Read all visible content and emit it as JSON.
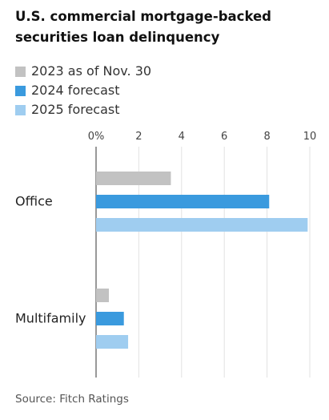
{
  "chart_data": {
    "type": "bar",
    "orientation": "horizontal",
    "title": "U.S. commercial mortgage-backed securities loan delinquency",
    "categories": [
      "Office",
      "Multifamily"
    ],
    "series": [
      {
        "name": "2023 as of Nov. 30",
        "color": "#c2c2c2",
        "values": [
          3.5,
          0.6
        ]
      },
      {
        "name": "2024 forecast",
        "color": "#3a9ade",
        "values": [
          8.1,
          1.3
        ]
      },
      {
        "name": "2025 forecast",
        "color": "#9fcdf0",
        "values": [
          9.9,
          1.5
        ]
      }
    ],
    "x_ticks": [
      0,
      2,
      4,
      6,
      8,
      10
    ],
    "x_tick_labels": [
      "0%",
      "2",
      "4",
      "6",
      "8",
      "10"
    ],
    "xlim": [
      0,
      10
    ],
    "grid": true,
    "legend_position": "top-left",
    "source": "Source: Fitch Ratings"
  }
}
